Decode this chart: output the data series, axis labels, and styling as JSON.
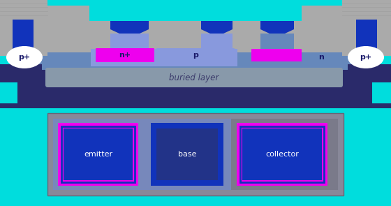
{
  "bg_color": "#00dddd",
  "colors": {
    "oxide": "#aaaaaa",
    "epi_blue": "#6688bb",
    "substrate_dark": "#2a2a6a",
    "n_plus_magenta": "#ee00ee",
    "p_base_blue": "#7788cc",
    "buried_gray": "#7788aa",
    "metal_blue": "#1133bb",
    "white": "#ffffff",
    "gray_outline": "#777788",
    "dark_navy": "#1a1a55",
    "contact_dark": "#223388",
    "collector_gray": "#888899",
    "cyan_bg": "#00dddd"
  },
  "labels": {
    "p_plus_left": "p+",
    "n_plus": "n+",
    "p": "p",
    "n": "n",
    "p_plus_right": "p+",
    "buried": "buried layer",
    "emitter": "emitter",
    "base": "base",
    "collector": "collector"
  }
}
